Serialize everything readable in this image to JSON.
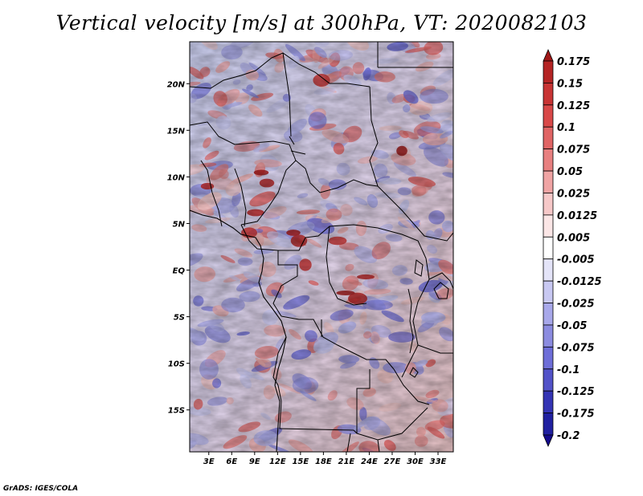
{
  "title": "Vertical velocity [m/s] at 300hPa, VT: 2020082103",
  "credit": "GrADS: IGES/COLA",
  "map": {
    "lat_labels": [
      "20N",
      "15N",
      "10N",
      "5N",
      "EQ",
      "5S",
      "10S",
      "15S"
    ],
    "lat_values": [
      20,
      15,
      10,
      5,
      0,
      -5,
      -10,
      -15
    ],
    "lon_labels": [
      "3E",
      "6E",
      "9E",
      "12E",
      "15E",
      "18E",
      "21E",
      "24E",
      "27E",
      "30E",
      "33E"
    ],
    "lon_values": [
      3,
      6,
      9,
      12,
      15,
      18,
      21,
      24,
      27,
      30,
      33
    ],
    "lon_range": [
      0.5,
      35
    ],
    "lat_range": [
      -19.5,
      24.5
    ]
  },
  "colorbar": {
    "labels": [
      "0.175",
      "0.15",
      "0.125",
      "0.1",
      "0.075",
      "0.05",
      "0.025",
      "0.0125",
      "0.005",
      "-0.005",
      "-0.0125",
      "-0.025",
      "-0.05",
      "-0.075",
      "-0.1",
      "-0.125",
      "-0.175",
      "-0.2"
    ],
    "colors": [
      "#a01818",
      "#b42424",
      "#c83434",
      "#d84848",
      "#e06464",
      "#e88080",
      "#f0a4a4",
      "#f6c8c8",
      "#fbe6e6",
      "#ffffff",
      "#e4e4f8",
      "#c8c8f2",
      "#a8a8ea",
      "#8c8ce0",
      "#6e6ed8",
      "#5252c8",
      "#3434b4",
      "#2020a0",
      "#140a8c"
    ]
  }
}
